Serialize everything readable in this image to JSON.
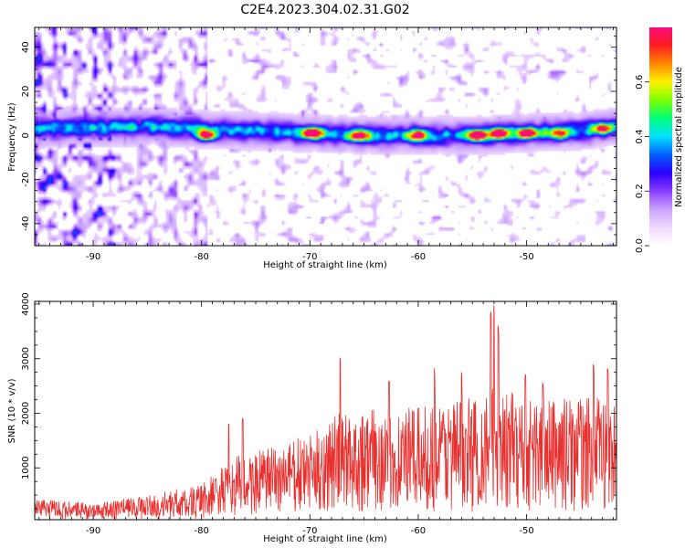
{
  "title": "C2E4.2023.304.02.31.G02",
  "colors": {
    "snr_line": "#e8312f",
    "colormap": [
      "#ffffff",
      "#f0d9ff",
      "#c9a3ff",
      "#8a3dff",
      "#2a00ff",
      "#0060ff",
      "#00e0ff",
      "#00ff7a",
      "#7aff00",
      "#fff200",
      "#ff8800",
      "#ff1f1f",
      "#ff0a80"
    ]
  },
  "chart_data": [
    {
      "type": "heatmap",
      "title": "",
      "xlabel": "Height of straight line (km)",
      "ylabel": "Frequency (Hz)",
      "xlim": [
        -95.4,
        -41.7
      ],
      "ylim": [
        -50,
        49
      ],
      "xticks": [
        -90,
        -80,
        -70,
        -60,
        -50
      ],
      "yticks": [
        -40,
        -20,
        0,
        20,
        40
      ],
      "grid": false,
      "colorbar": {
        "label": "Normalized spectral amplitude",
        "range": [
          0,
          0.8
        ],
        "ticks": [
          "0.0",
          "0.2",
          "0.4",
          "0.6"
        ]
      },
      "description_values": {
        "main_band_center_hz": [
          [
            -95,
            3
          ],
          [
            -85,
            4
          ],
          [
            -75,
            2
          ],
          [
            -65,
            0
          ],
          [
            -55,
            0
          ],
          [
            -45,
            2
          ],
          [
            -42,
            4
          ]
        ],
        "main_band_halfwidth_hz": 6,
        "strong_spots": [
          {
            "x": -79.5,
            "y": 0,
            "v": 0.75
          },
          {
            "x": -69.8,
            "y": 1,
            "v": 0.8
          },
          {
            "x": -65.5,
            "y": 0,
            "v": 0.7
          },
          {
            "x": -60,
            "y": 0,
            "v": 0.65
          },
          {
            "x": -54.5,
            "y": 0,
            "v": 0.8
          },
          {
            "x": -52.5,
            "y": 1,
            "v": 0.75
          },
          {
            "x": -50,
            "y": 1,
            "v": 0.75
          },
          {
            "x": -47,
            "y": 1,
            "v": 0.55
          },
          {
            "x": -43,
            "y": 3,
            "v": 0.55
          }
        ]
      }
    },
    {
      "type": "line",
      "title": "",
      "xlabel": "Height of straight line (km)",
      "ylabel": "SNR (10 * v/v)",
      "xlim": [
        -95.4,
        -41.7
      ],
      "ylim": [
        50,
        4050
      ],
      "xticks": [
        -90,
        -80,
        -70,
        -60,
        -50
      ],
      "yticks": [
        1000,
        2000,
        3000,
        4000
      ],
      "grid": false,
      "series": [
        {
          "envelope": {
            "x": [
              -95.4,
              -90,
              -85,
              -80,
              -77,
              -75,
              -72,
              -70,
              -67.5,
              -65,
              -62,
              -60,
              -57,
              -55,
              -53,
              -50,
              -47,
              -45,
              -42
            ],
            "typical_max": [
              450,
              350,
              500,
              700,
              1200,
              1300,
              1500,
              1600,
              2000,
              2100,
              2100,
              2100,
              2300,
              2300,
              2500,
              2300,
              2300,
              2300,
              2300
            ]
          },
          "peaks": [
            {
              "x": -77.5,
              "y": 1800
            },
            {
              "x": -76.2,
              "y": 1950
            },
            {
              "x": -67.2,
              "y": 3150
            },
            {
              "x": -62.7,
              "y": 2600
            },
            {
              "x": -58.5,
              "y": 2850
            },
            {
              "x": -56.0,
              "y": 2900
            },
            {
              "x": -53.3,
              "y": 3900
            },
            {
              "x": -53.0,
              "y": 4000
            },
            {
              "x": -52.6,
              "y": 3700
            },
            {
              "x": -50.1,
              "y": 2750
            },
            {
              "x": -48.5,
              "y": 2600
            },
            {
              "x": -43.8,
              "y": 2900
            },
            {
              "x": -42.5,
              "y": 2850
            }
          ]
        }
      ]
    }
  ]
}
